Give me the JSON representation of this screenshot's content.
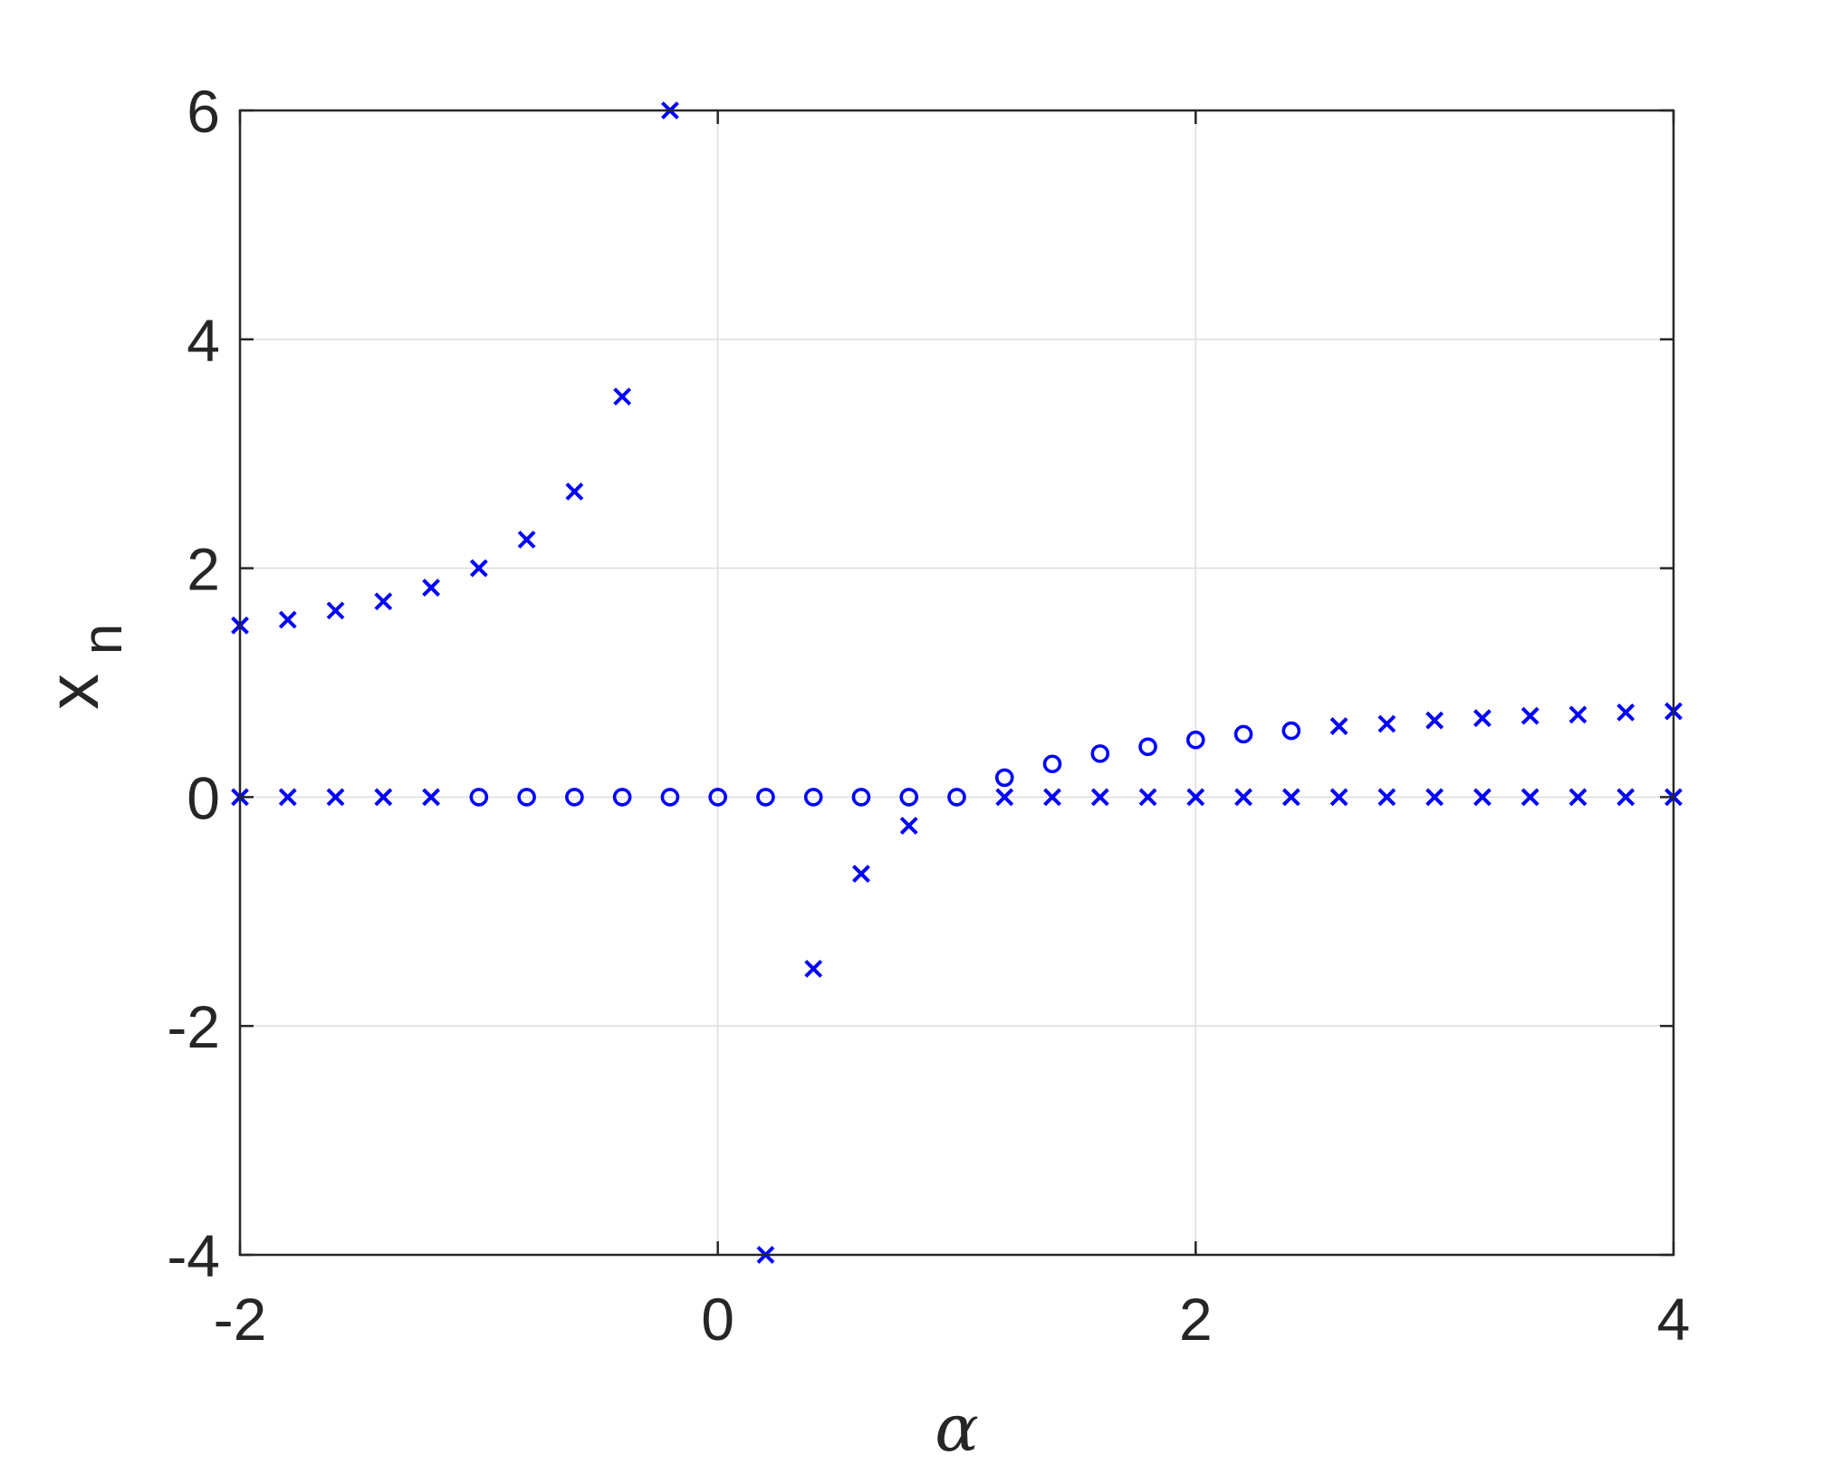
{
  "chart_data": {
    "type": "scatter",
    "xlabel": "α",
    "ylabel_main": "x",
    "ylabel_sub": "n",
    "xlim": [
      -2,
      4
    ],
    "ylim": [
      -4,
      6
    ],
    "xticks": [
      "-2",
      "0",
      "2",
      "4"
    ],
    "yticks": [
      "-4",
      "-2",
      "0",
      "2",
      "4",
      "6"
    ],
    "xtick_values": [
      -2,
      0,
      2,
      4
    ],
    "ytick_values": [
      -4,
      -2,
      0,
      2,
      4,
      6
    ],
    "grid": true,
    "marker_color": "#0000ff",
    "series": [
      {
        "marker": "x",
        "points": [
          [
            -2.0,
            1.5
          ],
          [
            -1.8,
            1.55
          ],
          [
            -1.6,
            1.63
          ],
          [
            -1.4,
            1.71
          ],
          [
            -1.2,
            1.83
          ],
          [
            -1.0,
            2.0
          ],
          [
            -0.8,
            2.25
          ],
          [
            -0.6,
            2.67
          ],
          [
            -0.4,
            3.5
          ],
          [
            -0.2,
            6.0
          ],
          [
            0.2,
            -4.0
          ],
          [
            0.4,
            -1.5
          ],
          [
            0.6,
            -0.67
          ],
          [
            0.8,
            -0.25
          ],
          [
            2.6,
            0.62
          ],
          [
            2.8,
            0.64
          ],
          [
            3.0,
            0.67
          ],
          [
            3.2,
            0.69
          ],
          [
            3.4,
            0.71
          ],
          [
            3.6,
            0.72
          ],
          [
            3.8,
            0.74
          ],
          [
            4.0,
            0.75
          ],
          [
            -2.0,
            0
          ],
          [
            -1.8,
            0
          ],
          [
            -1.6,
            0
          ],
          [
            -1.4,
            0
          ],
          [
            -1.2,
            0
          ],
          [
            1.2,
            0
          ],
          [
            1.4,
            0
          ],
          [
            1.6,
            0
          ],
          [
            1.8,
            0
          ],
          [
            2.0,
            0
          ],
          [
            2.2,
            0
          ],
          [
            2.4,
            0
          ],
          [
            2.6,
            0
          ],
          [
            2.8,
            0
          ],
          [
            3.0,
            0
          ],
          [
            3.2,
            0
          ],
          [
            3.4,
            0
          ],
          [
            3.6,
            0
          ],
          [
            3.8,
            0
          ],
          [
            4.0,
            0
          ]
        ]
      },
      {
        "marker": "o",
        "points": [
          [
            -1.0,
            0
          ],
          [
            -0.8,
            0
          ],
          [
            -0.6,
            0
          ],
          [
            -0.4,
            0
          ],
          [
            -0.2,
            0
          ],
          [
            0.0,
            0
          ],
          [
            0.2,
            0
          ],
          [
            0.4,
            0
          ],
          [
            0.6,
            0
          ],
          [
            0.8,
            0
          ],
          [
            1.0,
            0
          ],
          [
            1.2,
            0.17
          ],
          [
            1.4,
            0.29
          ],
          [
            1.6,
            0.38
          ],
          [
            1.8,
            0.44
          ],
          [
            2.0,
            0.5
          ],
          [
            2.2,
            0.55
          ],
          [
            2.4,
            0.58
          ]
        ]
      }
    ]
  }
}
